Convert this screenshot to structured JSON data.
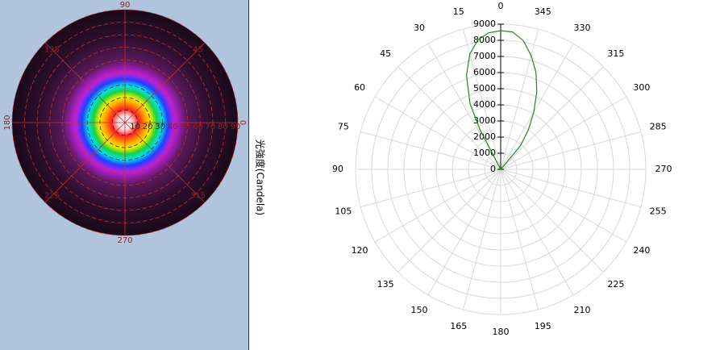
{
  "chart_data": [
    {
      "type": "polar-image",
      "xticks": [
        0,
        45,
        90,
        135,
        180,
        225,
        270,
        315
      ],
      "ylim": [
        0,
        90
      ],
      "yticks": [
        10,
        20,
        30,
        40,
        50,
        60,
        70,
        80,
        90
      ]
    },
    {
      "type": "polar-line",
      "ylabel": "光強度(Candela)",
      "direction": "counterclockwise",
      "xticks": [
        0,
        15,
        30,
        45,
        60,
        75,
        90,
        105,
        120,
        135,
        150,
        165,
        180,
        195,
        210,
        225,
        240,
        255,
        270,
        285,
        300,
        315,
        330,
        345
      ],
      "ylim": [
        0,
        9000
      ],
      "yticks": [
        0,
        1000,
        2000,
        3000,
        4000,
        5000,
        6000,
        7000,
        8000,
        9000
      ],
      "grid": true,
      "color": "#1e8a1e",
      "x": [
        -45,
        -40,
        -35,
        -30,
        -25,
        -20,
        -15,
        -10,
        -5,
        0,
        5,
        10,
        15,
        20,
        25,
        27.5,
        30
      ],
      "values": [
        0,
        1900,
        3000,
        4100,
        5300,
        6400,
        7300,
        8100,
        8550,
        8600,
        8500,
        8150,
        7400,
        6200,
        4500,
        2800,
        0
      ]
    }
  ]
}
